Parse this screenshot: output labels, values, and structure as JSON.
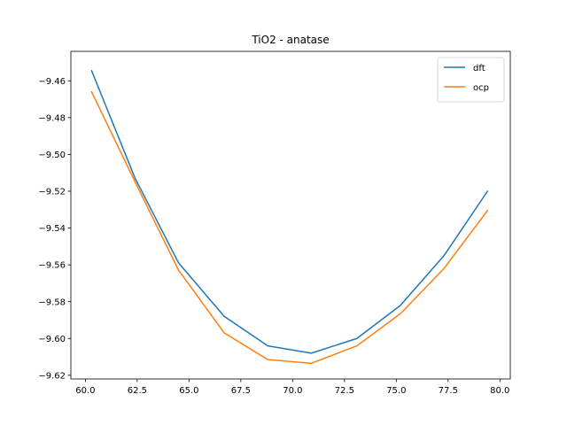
{
  "chart_data": {
    "type": "line",
    "title": "TiO2 - anatase",
    "xlabel": "",
    "ylabel": "",
    "xlim": [
      59.3,
      80.5
    ],
    "ylim": [
      -9.622,
      -9.444
    ],
    "x_ticks": [
      60.0,
      62.5,
      65.0,
      67.5,
      70.0,
      72.5,
      75.0,
      77.5,
      80.0
    ],
    "x_tick_labels": [
      "60.0",
      "62.5",
      "65.0",
      "67.5",
      "70.0",
      "72.5",
      "75.0",
      "77.5",
      "80.0"
    ],
    "y_ticks": [
      -9.46,
      -9.48,
      -9.5,
      -9.52,
      -9.54,
      -9.56,
      -9.58,
      -9.6,
      -9.62
    ],
    "y_tick_labels": [
      "−9.46",
      "−9.48",
      "−9.50",
      "−9.52",
      "−9.54",
      "−9.56",
      "−9.58",
      "−9.60",
      "−9.62"
    ],
    "grid": false,
    "legend_position": "top-right",
    "x": [
      60.3,
      62.4,
      64.5,
      66.7,
      68.8,
      70.9,
      73.1,
      75.2,
      77.3,
      79.4
    ],
    "series": [
      {
        "name": "dft",
        "color": "#1f77b4",
        "values": [
          -9.4545,
          -9.513,
          -9.559,
          -9.588,
          -9.604,
          -9.608,
          -9.6,
          -9.582,
          -9.555,
          -9.52
        ]
      },
      {
        "name": "ocp",
        "color": "#ff7f0e",
        "values": [
          -9.466,
          -9.515,
          -9.563,
          -9.597,
          -9.6115,
          -9.6135,
          -9.604,
          -9.5865,
          -9.562,
          -9.5305
        ]
      }
    ]
  }
}
